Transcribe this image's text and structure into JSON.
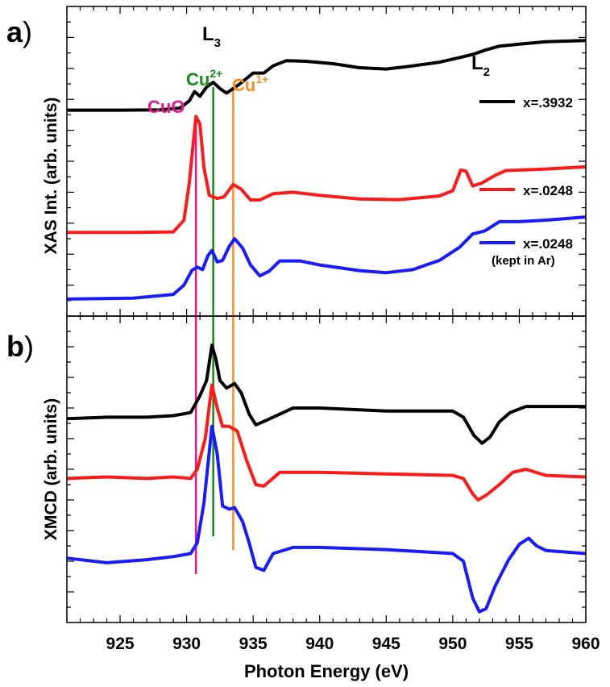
{
  "chart_data": [
    {
      "panel_label": "a)",
      "type": "line",
      "ylabel": "XAS Int. (arb. units)",
      "xlim": [
        921,
        960
      ],
      "ylim": [
        0,
        1
      ],
      "vlines": [
        {
          "label": "CuO",
          "x": 930.7,
          "color": "#e5168f"
        },
        {
          "label": "Cu",
          "sup": "2+",
          "x": 932.0,
          "color": "#168a1e"
        },
        {
          "label": "Cu",
          "sup": "1+",
          "x": 933.5,
          "color": "#ff8c1a"
        }
      ],
      "edge_labels": [
        {
          "label": "L",
          "sub": "3",
          "x": 932.0
        },
        {
          "label": "L",
          "sub": "2",
          "x": 952.3
        }
      ],
      "series": [
        {
          "name": "x=.3932",
          "color": "#000000",
          "points": [
            [
              921,
              0.665
            ],
            [
              925,
              0.665
            ],
            [
              928,
              0.666
            ],
            [
              929.5,
              0.672
            ],
            [
              930.2,
              0.695
            ],
            [
              930.6,
              0.725
            ],
            [
              931.0,
              0.71
            ],
            [
              931.5,
              0.74
            ],
            [
              932.0,
              0.755
            ],
            [
              932.5,
              0.735
            ],
            [
              933.0,
              0.72
            ],
            [
              933.5,
              0.735
            ],
            [
              934.0,
              0.75
            ],
            [
              935.0,
              0.785
            ],
            [
              935.8,
              0.785
            ],
            [
              936.5,
              0.808
            ],
            [
              937.5,
              0.825
            ],
            [
              939,
              0.823
            ],
            [
              941,
              0.815
            ],
            [
              943,
              0.802
            ],
            [
              945,
              0.798
            ],
            [
              947,
              0.808
            ],
            [
              949,
              0.82
            ],
            [
              950.5,
              0.835
            ],
            [
              951.5,
              0.845
            ],
            [
              952.5,
              0.86
            ],
            [
              953.5,
              0.872
            ],
            [
              955,
              0.878
            ],
            [
              957,
              0.886
            ],
            [
              960,
              0.89
            ]
          ]
        },
        {
          "name": "x=.0248",
          "color": "#ff1a1a",
          "points": [
            [
              921,
              0.27
            ],
            [
              926,
              0.27
            ],
            [
              929,
              0.272
            ],
            [
              929.8,
              0.31
            ],
            [
              930.2,
              0.43
            ],
            [
              930.7,
              0.645
            ],
            [
              931.0,
              0.62
            ],
            [
              931.3,
              0.48
            ],
            [
              931.7,
              0.39
            ],
            [
              932.3,
              0.38
            ],
            [
              932.8,
              0.385
            ],
            [
              933.5,
              0.425
            ],
            [
              934.1,
              0.41
            ],
            [
              934.8,
              0.375
            ],
            [
              935.5,
              0.375
            ],
            [
              936.5,
              0.395
            ],
            [
              938,
              0.4
            ],
            [
              940,
              0.39
            ],
            [
              943,
              0.378
            ],
            [
              946,
              0.376
            ],
            [
              949,
              0.388
            ],
            [
              950.0,
              0.405
            ],
            [
              950.6,
              0.472
            ],
            [
              951.0,
              0.468
            ],
            [
              951.5,
              0.42
            ],
            [
              952.2,
              0.43
            ],
            [
              953.2,
              0.455
            ],
            [
              954,
              0.47
            ],
            [
              957,
              0.475
            ],
            [
              960,
              0.482
            ]
          ]
        },
        {
          "name": "x=.0248",
          "name_line2": "(kept in Ar)",
          "color": "#1a1aff",
          "points": [
            [
              921,
              0.055
            ],
            [
              926,
              0.058
            ],
            [
              929,
              0.07
            ],
            [
              929.8,
              0.1
            ],
            [
              930.4,
              0.148
            ],
            [
              930.8,
              0.158
            ],
            [
              931.2,
              0.15
            ],
            [
              931.6,
              0.195
            ],
            [
              931.9,
              0.212
            ],
            [
              932.3,
              0.175
            ],
            [
              932.7,
              0.18
            ],
            [
              933.2,
              0.225
            ],
            [
              933.6,
              0.25
            ],
            [
              934.2,
              0.22
            ],
            [
              934.8,
              0.165
            ],
            [
              935.5,
              0.13
            ],
            [
              936.2,
              0.145
            ],
            [
              937.0,
              0.178
            ],
            [
              938.5,
              0.178
            ],
            [
              940,
              0.165
            ],
            [
              943,
              0.147
            ],
            [
              945,
              0.14
            ],
            [
              947,
              0.15
            ],
            [
              949,
              0.18
            ],
            [
              950.5,
              0.222
            ],
            [
              951.5,
              0.265
            ],
            [
              952.4,
              0.275
            ],
            [
              953.5,
              0.305
            ],
            [
              955,
              0.305
            ],
            [
              957,
              0.31
            ],
            [
              960,
              0.32
            ]
          ]
        }
      ]
    },
    {
      "panel_label": "b)",
      "type": "line",
      "ylabel": "XMCD (arb. units)",
      "xlabel": "Photon Energy (eV)",
      "xlim": [
        921,
        960
      ],
      "ylim": [
        0,
        1
      ],
      "xticks": [
        925,
        930,
        935,
        940,
        945,
        950,
        955,
        960
      ],
      "vlines": [
        {
          "x": 930.7,
          "color": "#e5168f"
        },
        {
          "x": 932.0,
          "color": "#168a1e"
        },
        {
          "x": 933.5,
          "color": "#ff8c1a"
        }
      ],
      "series": [
        {
          "color": "#000000",
          "points": [
            [
              921,
              0.665
            ],
            [
              924,
              0.67
            ],
            [
              927,
              0.67
            ],
            [
              929,
              0.675
            ],
            [
              930.3,
              0.685
            ],
            [
              931.0,
              0.74
            ],
            [
              931.5,
              0.79
            ],
            [
              931.9,
              0.905
            ],
            [
              932.2,
              0.86
            ],
            [
              932.5,
              0.79
            ],
            [
              933.0,
              0.765
            ],
            [
              933.6,
              0.78
            ],
            [
              934.1,
              0.75
            ],
            [
              934.7,
              0.68
            ],
            [
              935.2,
              0.645
            ],
            [
              936,
              0.66
            ],
            [
              938,
              0.7
            ],
            [
              940,
              0.7
            ],
            [
              945,
              0.69
            ],
            [
              950,
              0.69
            ],
            [
              950.8,
              0.67
            ],
            [
              951.6,
              0.61
            ],
            [
              952.2,
              0.585
            ],
            [
              952.8,
              0.605
            ],
            [
              953.5,
              0.655
            ],
            [
              954.3,
              0.685
            ],
            [
              955.5,
              0.705
            ],
            [
              957,
              0.705
            ],
            [
              960,
              0.705
            ]
          ]
        },
        {
          "color": "#ff1a1a",
          "points": [
            [
              921,
              0.47
            ],
            [
              924,
              0.475
            ],
            [
              927,
              0.47
            ],
            [
              929,
              0.475
            ],
            [
              930.3,
              0.47
            ],
            [
              930.8,
              0.5
            ],
            [
              931.4,
              0.6
            ],
            [
              931.9,
              0.775
            ],
            [
              932.3,
              0.7
            ],
            [
              932.7,
              0.64
            ],
            [
              933.2,
              0.64
            ],
            [
              933.8,
              0.625
            ],
            [
              934.5,
              0.53
            ],
            [
              935.2,
              0.45
            ],
            [
              935.8,
              0.445
            ],
            [
              937,
              0.49
            ],
            [
              940,
              0.49
            ],
            [
              945,
              0.485
            ],
            [
              950,
              0.48
            ],
            [
              950.8,
              0.47
            ],
            [
              951.5,
              0.42
            ],
            [
              951.9,
              0.4
            ],
            [
              952.5,
              0.415
            ],
            [
              953.5,
              0.45
            ],
            [
              954.5,
              0.49
            ],
            [
              955.5,
              0.5
            ],
            [
              957,
              0.48
            ],
            [
              960,
              0.475
            ]
          ]
        },
        {
          "color": "#1a1aff",
          "points": [
            [
              921,
              0.21
            ],
            [
              924,
              0.195
            ],
            [
              927,
              0.205
            ],
            [
              929,
              0.215
            ],
            [
              930.3,
              0.225
            ],
            [
              930.8,
              0.26
            ],
            [
              931.3,
              0.39
            ],
            [
              931.9,
              0.64
            ],
            [
              932.3,
              0.55
            ],
            [
              932.7,
              0.38
            ],
            [
              933.2,
              0.37
            ],
            [
              933.6,
              0.375
            ],
            [
              934.2,
              0.33
            ],
            [
              934.7,
              0.26
            ],
            [
              935.2,
              0.18
            ],
            [
              935.8,
              0.17
            ],
            [
              936.5,
              0.225
            ],
            [
              938,
              0.245
            ],
            [
              940,
              0.245
            ],
            [
              945,
              0.238
            ],
            [
              950,
              0.225
            ],
            [
              950.8,
              0.2
            ],
            [
              951.5,
              0.08
            ],
            [
              952.0,
              0.035
            ],
            [
              952.5,
              0.045
            ],
            [
              953.2,
              0.12
            ],
            [
              954.2,
              0.205
            ],
            [
              955.0,
              0.255
            ],
            [
              955.7,
              0.275
            ],
            [
              956.3,
              0.25
            ],
            [
              957,
              0.235
            ],
            [
              960,
              0.225
            ]
          ]
        }
      ]
    }
  ]
}
